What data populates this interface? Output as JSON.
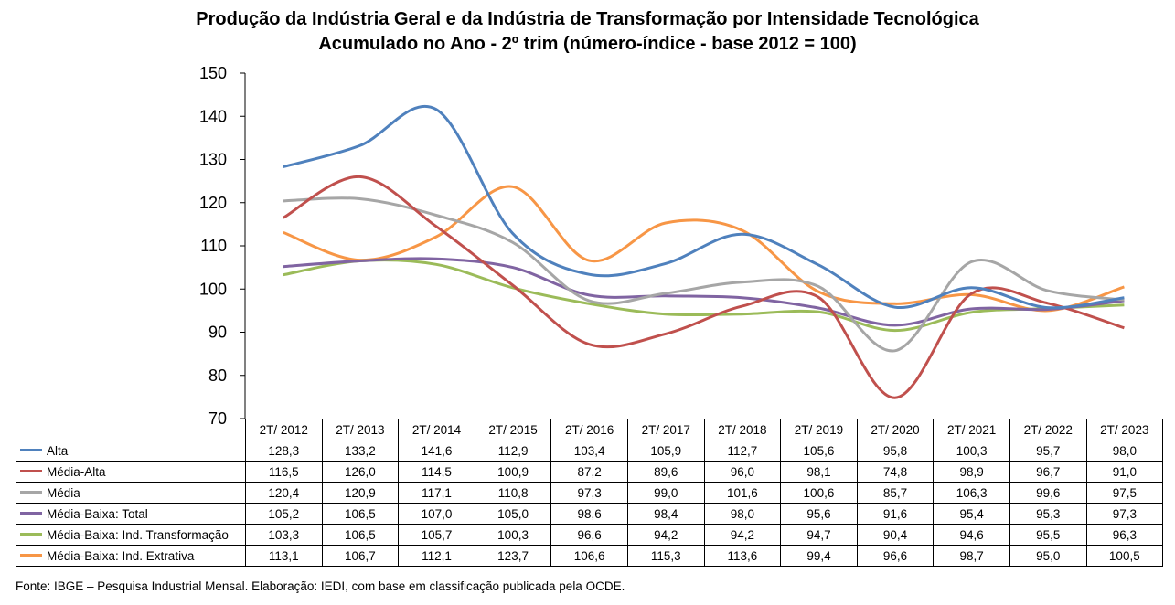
{
  "chart_data": {
    "type": "line",
    "title": "Produção da Indústria Geral e da Indústria de Transformação por Intensidade Tecnológica",
    "subtitle": "Acumulado no Ano - 2º trim (número-índice - base 2012 = 100)",
    "categories": [
      "2T/ 2012",
      "2T/ 2013",
      "2T/ 2014",
      "2T/ 2015",
      "2T/ 2016",
      "2T/ 2017",
      "2T/ 2018",
      "2T/ 2019",
      "2T/ 2020",
      "2T/ 2021",
      "2T/ 2022",
      "2T/ 2023"
    ],
    "ylim": [
      70,
      150
    ],
    "yticks": [
      "70",
      "80",
      "90",
      "100",
      "110",
      "120",
      "130",
      "140",
      "150"
    ],
    "series": [
      {
        "name": "Alta",
        "color": "#4F81BD",
        "values": [
          128.3,
          133.2,
          141.6,
          112.9,
          103.4,
          105.9,
          112.7,
          105.6,
          95.8,
          100.3,
          95.7,
          98.0
        ],
        "labels": [
          "128,3",
          "133,2",
          "141,6",
          "112,9",
          "103,4",
          "105,9",
          "112,7",
          "105,6",
          "95,8",
          "100,3",
          "95,7",
          "98,0"
        ]
      },
      {
        "name": "Média-Alta",
        "color": "#C0504D",
        "values": [
          116.5,
          126.0,
          114.5,
          100.9,
          87.2,
          89.6,
          96.0,
          98.1,
          74.8,
          98.9,
          96.7,
          91.0
        ],
        "labels": [
          "116,5",
          "126,0",
          "114,5",
          "100,9",
          "87,2",
          "89,6",
          "96,0",
          "98,1",
          "74,8",
          "98,9",
          "96,7",
          "91,0"
        ]
      },
      {
        "name": "Média",
        "color": "#A6A6A6",
        "values": [
          120.4,
          120.9,
          117.1,
          110.8,
          97.3,
          99.0,
          101.6,
          100.6,
          85.7,
          106.3,
          99.6,
          97.5
        ],
        "labels": [
          "120,4",
          "120,9",
          "117,1",
          "110,8",
          "97,3",
          "99,0",
          "101,6",
          "100,6",
          "85,7",
          "106,3",
          "99,6",
          "97,5"
        ]
      },
      {
        "name": "Média-Baixa: Total",
        "color": "#8064A2",
        "values": [
          105.2,
          106.5,
          107.0,
          105.0,
          98.6,
          98.4,
          98.0,
          95.6,
          91.6,
          95.4,
          95.3,
          97.3
        ],
        "labels": [
          "105,2",
          "106,5",
          "107,0",
          "105,0",
          "98,6",
          "98,4",
          "98,0",
          "95,6",
          "91,6",
          "95,4",
          "95,3",
          "97,3"
        ]
      },
      {
        "name": "Média-Baixa: Ind. Transformação",
        "color": "#9BBB59",
        "values": [
          103.3,
          106.5,
          105.7,
          100.3,
          96.6,
          94.2,
          94.2,
          94.7,
          90.4,
          94.6,
          95.5,
          96.3
        ],
        "labels": [
          "103,3",
          "106,5",
          "105,7",
          "100,3",
          "96,6",
          "94,2",
          "94,2",
          "94,7",
          "90,4",
          "94,6",
          "95,5",
          "96,3"
        ]
      },
      {
        "name": "Média-Baixa: Ind. Extrativa",
        "color": "#F79646",
        "values": [
          113.1,
          106.7,
          112.1,
          123.7,
          106.6,
          115.3,
          113.6,
          99.4,
          96.6,
          98.7,
          95.0,
          100.5
        ],
        "labels": [
          "113,1",
          "106,7",
          "112,1",
          "123,7",
          "106,6",
          "115,3",
          "113,6",
          "99,4",
          "96,6",
          "98,7",
          "95,0",
          "100,5"
        ]
      }
    ]
  },
  "source": "Fonte: IBGE – Pesquisa Industrial Mensal. Elaboração: IEDI, com base em classificação publicada pela OCDE."
}
